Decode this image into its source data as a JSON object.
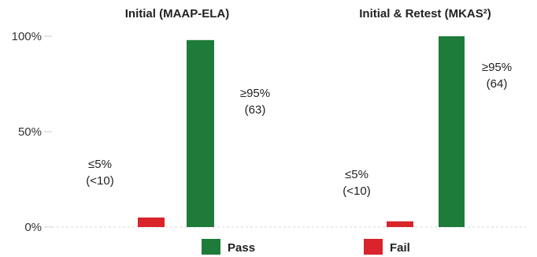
{
  "chart_data": {
    "type": "bar",
    "ylim": [
      0,
      100
    ],
    "yticks": [
      {
        "value": 100,
        "label": "100%"
      },
      {
        "value": 50,
        "label": "50%"
      },
      {
        "value": 0,
        "label": "0%"
      }
    ],
    "grid": false,
    "legend_position": "bottom",
    "colors": {
      "Pass": "#1e7b3a",
      "Fail": "#d9242b"
    },
    "panels": [
      {
        "title": "Initial (MAAP-ELA)",
        "bars": [
          {
            "series": "Fail",
            "value": 5
          },
          {
            "series": "Pass",
            "value": 98
          }
        ],
        "annotations": [
          {
            "series": "Fail",
            "line1": "≤5%",
            "line2": "(<10)"
          },
          {
            "series": "Pass",
            "line1": "≥95%",
            "line2": "(63)"
          }
        ]
      },
      {
        "title": "Initial & Retest (MKAS²)",
        "bars": [
          {
            "series": "Fail",
            "value": 3
          },
          {
            "series": "Pass",
            "value": 100
          }
        ],
        "annotations": [
          {
            "series": "Fail",
            "line1": "≤5%",
            "line2": "(<10)"
          },
          {
            "series": "Pass",
            "line1": "≥95%",
            "line2": "(64)"
          }
        ]
      }
    ],
    "legend": [
      {
        "name": "Pass"
      },
      {
        "name": "Fail"
      }
    ]
  }
}
